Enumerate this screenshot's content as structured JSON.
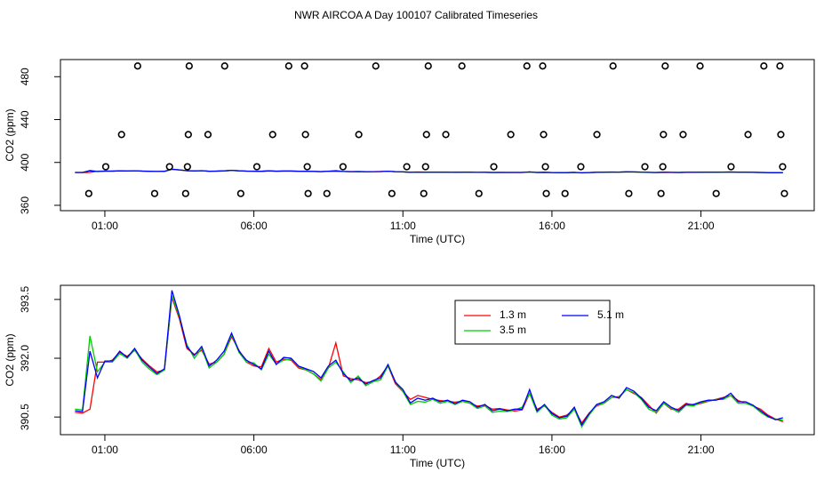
{
  "chart_data": [
    {
      "type": "scatter",
      "title": "NWR AIRCOA A  Day 100107  Calibrated Timeseries",
      "x_label": "Time (UTC)",
      "y_label": "CO2 (ppm)",
      "xlim": [
        -0.49,
        24.8
      ],
      "ylim": [
        355,
        496
      ],
      "xticks": [
        {
          "value": 1,
          "label": "01:00"
        },
        {
          "value": 6,
          "label": "06:00"
        },
        {
          "value": 11,
          "label": "11:00"
        },
        {
          "value": 16,
          "label": "16:00"
        },
        {
          "value": 21,
          "label": "21:00"
        }
      ],
      "yticks": [
        360,
        400,
        440,
        480
      ],
      "series": [
        {
          "color": "#000000",
          "x": [
            2.1,
            3.83,
            5.02,
            7.17,
            7.7,
            10.09,
            11.85,
            12.98,
            15.16,
            15.69,
            18.05,
            19.8,
            20.97,
            23.11,
            23.65,
            1.56,
            3.8,
            4.46,
            6.63,
            7.73,
            9.52,
            11.79,
            12.44,
            14.62,
            15.72,
            17.51,
            19.74,
            20.4,
            22.58,
            23.68,
            1.03,
            3.17,
            3.77,
            6.1,
            7.79,
            8.99,
            11.13,
            11.76,
            14.05,
            15.78,
            16.97,
            19.12,
            19.72,
            22.01,
            23.74,
            0.46,
            2.67,
            3.71,
            5.56,
            7.82,
            8.45,
            10.63,
            11.7,
            13.55,
            15.81,
            16.44,
            18.58,
            19.66,
            21.51,
            23.8
          ],
          "values": [
            490,
            490,
            490,
            490,
            490,
            490,
            490,
            490,
            490,
            490,
            490,
            490,
            490,
            490,
            490,
            426,
            426,
            426,
            426,
            426,
            426,
            426,
            426,
            426,
            426,
            426,
            426,
            426,
            426,
            426,
            396,
            396,
            396,
            396,
            396,
            396,
            396,
            396,
            396,
            396,
            396,
            396,
            396,
            396,
            396,
            371,
            371,
            371,
            371,
            371,
            371,
            371,
            371,
            371,
            371,
            371,
            371,
            371,
            371,
            371
          ]
        }
      ]
    },
    {
      "type": "line",
      "x_label": "Time (UTC)",
      "y_label": "CO2 (ppm)",
      "xlim": [
        -0.49,
        24.8
      ],
      "ylim": [
        390.05,
        393.86
      ],
      "xticks": [
        {
          "value": 1,
          "label": "01:00"
        },
        {
          "value": 6,
          "label": "06:00"
        },
        {
          "value": 11,
          "label": "11:00"
        },
        {
          "value": 16,
          "label": "16:00"
        },
        {
          "value": 21,
          "label": "21:00"
        }
      ],
      "yticks": [
        390.5,
        {
          "value": 392,
          "label": "392.0"
        },
        393.5
      ],
      "x": [
        0,
        0.25,
        0.5,
        0.75,
        1,
        1.25,
        1.5,
        1.75,
        2,
        2.25,
        2.5,
        2.75,
        3,
        3.25,
        3.5,
        3.75,
        4,
        4.25,
        4.5,
        4.75,
        5,
        5.25,
        5.5,
        5.75,
        6,
        6.25,
        6.5,
        6.75,
        7,
        7.25,
        7.5,
        7.75,
        8,
        8.25,
        8.5,
        8.75,
        9,
        9.25,
        9.5,
        9.75,
        10,
        10.25,
        10.5,
        10.75,
        11,
        11.25,
        11.5,
        11.75,
        12,
        12.25,
        12.5,
        12.75,
        13,
        13.25,
        13.5,
        13.75,
        14,
        14.25,
        14.5,
        14.75,
        15,
        15.25,
        15.5,
        15.75,
        16,
        16.25,
        16.5,
        16.75,
        17,
        17.25,
        17.5,
        17.75,
        18,
        18.25,
        18.5,
        18.75,
        19,
        19.25,
        19.5,
        19.75,
        20,
        20.25,
        20.5,
        20.75,
        21,
        21.25,
        21.5,
        21.75,
        22,
        22.25,
        22.5,
        22.75,
        23,
        23.25,
        23.5,
        23.75
      ],
      "series": [
        {
          "name": "1.3 m",
          "color": "#ff0000",
          "values": [
            390.62,
            390.6,
            390.7,
            391.9,
            391.9,
            391.95,
            392.15,
            392.05,
            392.2,
            391.98,
            391.8,
            391.65,
            391.7,
            393.55,
            393.0,
            392.25,
            392.1,
            392.2,
            391.85,
            391.9,
            392.1,
            392.55,
            392.2,
            391.9,
            391.8,
            391.78,
            392.25,
            391.9,
            391.98,
            391.95,
            391.75,
            391.7,
            391.6,
            391.45,
            391.75,
            392.39,
            391.55,
            391.48,
            391.45,
            391.38,
            391.4,
            391.55,
            391.8,
            391.35,
            391.15,
            390.95,
            391.05,
            391.0,
            390.95,
            390.92,
            390.9,
            390.88,
            390.9,
            390.85,
            390.78,
            390.8,
            390.7,
            390.72,
            390.68,
            390.65,
            390.68,
            391.1,
            390.7,
            390.78,
            390.62,
            390.5,
            390.55,
            390.7,
            390.35,
            390.6,
            390.78,
            390.85,
            391.0,
            391.02,
            391.2,
            391.1,
            391.0,
            390.8,
            390.6,
            390.85,
            390.7,
            390.7,
            390.85,
            390.8,
            390.85,
            390.9,
            390.95,
            391.0,
            391.05,
            390.92,
            390.85,
            390.78,
            390.7,
            390.55,
            390.45,
            390.38
          ]
        },
        {
          "name": "3.5 m",
          "color": "#00cd00",
          "values": [
            390.7,
            390.68,
            392.57,
            391.65,
            391.9,
            391.9,
            392.12,
            392.0,
            392.22,
            391.9,
            391.72,
            391.58,
            391.7,
            393.6,
            393.05,
            392.35,
            392.0,
            392.25,
            391.75,
            391.9,
            392.1,
            392.6,
            392.15,
            391.9,
            391.88,
            391.7,
            392.1,
            391.85,
            391.95,
            391.98,
            391.78,
            391.7,
            391.6,
            391.42,
            391.75,
            391.9,
            391.65,
            391.38,
            391.55,
            391.3,
            391.4,
            391.45,
            391.8,
            391.4,
            391.15,
            390.82,
            390.9,
            390.88,
            390.95,
            390.85,
            390.9,
            390.82,
            390.9,
            390.85,
            390.72,
            390.78,
            390.62,
            390.65,
            390.64,
            390.68,
            390.75,
            391.1,
            390.62,
            390.8,
            390.55,
            390.45,
            390.48,
            390.7,
            390.25,
            390.55,
            390.8,
            390.85,
            391.0,
            391.0,
            391.2,
            391.12,
            390.95,
            390.7,
            390.62,
            390.85,
            390.72,
            390.62,
            390.8,
            390.78,
            390.88,
            390.9,
            390.95,
            390.95,
            391.05,
            390.85,
            390.85,
            390.78,
            390.62,
            390.5,
            390.45,
            390.42
          ]
        },
        {
          "name": "5.1 m",
          "color": "#0000ff",
          "values": [
            390.66,
            390.64,
            392.18,
            391.5,
            391.93,
            391.93,
            392.18,
            392.02,
            392.25,
            391.95,
            391.77,
            391.61,
            391.73,
            393.73,
            393.09,
            392.3,
            392.07,
            392.3,
            391.8,
            391.95,
            392.18,
            392.64,
            392.18,
            391.95,
            391.84,
            391.73,
            392.18,
            391.84,
            392.02,
            392.0,
            391.8,
            391.73,
            391.66,
            391.5,
            391.8,
            391.95,
            391.61,
            391.43,
            391.5,
            391.34,
            391.43,
            391.5,
            391.84,
            391.39,
            391.2,
            390.86,
            390.98,
            390.93,
            390.98,
            390.89,
            390.93,
            390.84,
            390.93,
            390.89,
            390.75,
            390.82,
            390.66,
            390.7,
            390.66,
            390.7,
            390.7,
            391.2,
            390.66,
            390.82,
            390.59,
            390.48,
            390.52,
            390.75,
            390.3,
            390.59,
            390.82,
            390.89,
            391.05,
            390.98,
            391.25,
            391.16,
            390.98,
            390.75,
            390.66,
            390.89,
            390.75,
            390.66,
            390.82,
            390.82,
            390.89,
            390.93,
            390.93,
            390.98,
            391.11,
            390.89,
            390.89,
            390.8,
            390.66,
            390.52,
            390.43,
            390.48
          ]
        }
      ]
    }
  ]
}
